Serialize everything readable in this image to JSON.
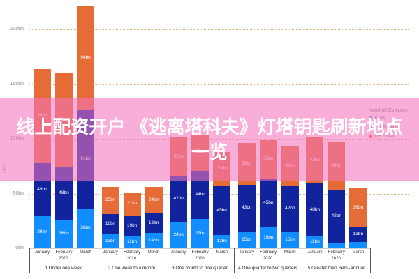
{
  "overlay": {
    "line1": "线上配资开户 《逃离塔科夫》灯塔钥匙刷新地点",
    "line2": "一览",
    "background": "#f374be",
    "text_color": "#ffffff"
  },
  "chart_data": {
    "type": "bar",
    "stacked": true,
    "unit": "bn",
    "ylabel": "£bn",
    "ylim": [
      0,
      220
    ],
    "yticks": [
      0,
      50,
      100,
      150,
      200
    ],
    "ytick_labels": [
      "0bn",
      "50bn",
      "100bn",
      "150bn",
      "200bn"
    ],
    "grid": "dotted-horizontal",
    "legend_position": "top-right",
    "legend_title": "Nominal Currency",
    "series": [
      {
        "name": "Euro",
        "color": "#118DFF"
      },
      {
        "name": "UK Sterling",
        "color": "#12239E"
      },
      {
        "name": "US Dollar",
        "color": "#E66C37"
      }
    ],
    "groups": [
      {
        "label": "1.Under one week",
        "year": "2020",
        "bars": [
          {
            "month": "January",
            "values": [
              29,
              49,
              86
            ]
          },
          {
            "month": "February",
            "values": [
              26,
              48,
              86
            ]
          },
          {
            "month": "March",
            "values": [
              36,
              91,
              94
            ]
          }
        ]
      },
      {
        "label": "2.One week to a month",
        "year": "2020",
        "bars": [
          {
            "month": "January",
            "values": [
              13,
              18,
              25
            ]
          },
          {
            "month": "February",
            "values": [
              11,
              19,
              21
            ]
          },
          {
            "month": "March",
            "values": [
              14,
              18,
              24
            ]
          }
        ]
      },
      {
        "label": "3.One month to one quarter",
        "year": "2020",
        "bars": [
          {
            "month": "January",
            "values": [
              24,
              42,
              35
            ]
          },
          {
            "month": "February",
            "values": [
              27,
              44,
              33
            ]
          },
          {
            "month": "March",
            "values": [
              12,
              45,
              31
            ]
          }
        ]
      },
      {
        "label": "4.One quarter to two quarters",
        "year": "2020",
        "bars": [
          {
            "month": "January",
            "values": [
              15,
              43,
              38
            ]
          },
          {
            "month": "February",
            "values": [
              19,
              45,
              35
            ]
          },
          {
            "month": "March",
            "values": [
              15,
              42,
              36
            ]
          }
        ]
      },
      {
        "label": "5.Greater than Semi-Annual",
        "year": "2020",
        "bars": [
          {
            "month": "January",
            "values": [
              11,
              48,
              42
            ]
          },
          {
            "month": "February",
            "values": [
              5,
              48,
              44
            ]
          },
          {
            "month": "March",
            "values": [
              6,
              13,
              36
            ]
          }
        ]
      }
    ]
  }
}
